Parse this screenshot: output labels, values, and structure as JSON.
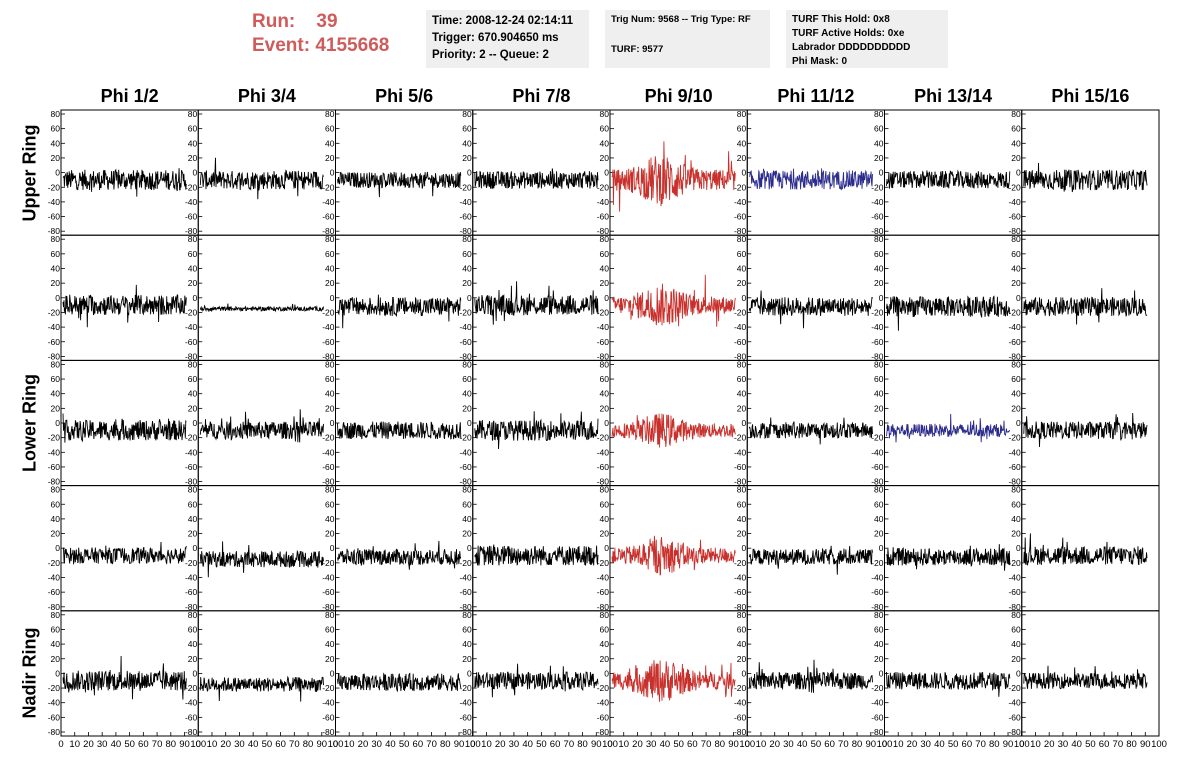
{
  "header": {
    "run_label": "Run:",
    "run_value": "39",
    "event_label": "Event:",
    "event_value": "4155668",
    "time": "Time: 2008-12-24 02:14:11",
    "trigger": "Trigger: 670.904650 ms",
    "priority": "Priority: 2 -- Queue: 2",
    "trig_num": "Trig Num: 9568 -- Trig Type: RF",
    "turf": "TURF: 9577",
    "turf_this_hold": "TURF This Hold: 0x8",
    "turf_active_holds": "TURF Active Holds: 0xe",
    "labrador": "Labrador DDDDDDDDDD",
    "phi_mask": "Phi Mask: 0"
  },
  "colors": {
    "run_text": "#cf5b5b",
    "trace_default": "#000000",
    "trace_red": "#c8302c",
    "trace_blue": "#2c2c8c",
    "info_bg": "#efefef"
  },
  "chart_data": {
    "type": "line",
    "columns": [
      "Phi 1/2",
      "Phi 3/4",
      "Phi 5/6",
      "Phi 7/8",
      "Phi 9/10",
      "Phi 11/12",
      "Phi 13/14",
      "Phi 15/16"
    ],
    "rows": [
      "Upper Ring",
      "",
      "Lower Ring",
      "",
      "Nadir Ring"
    ],
    "ylim": [
      -80,
      80
    ],
    "yticks": [
      "80",
      "60",
      "40",
      "20",
      "0",
      "-20",
      "-40",
      "-60",
      "-80"
    ],
    "xlim": [
      0,
      100
    ],
    "xticks": [
      "0",
      "10",
      "20",
      "30",
      "40",
      "50",
      "60",
      "70",
      "80",
      "90",
      "100"
    ],
    "grid": false,
    "trace_colors": [
      [
        "black",
        "black",
        "black",
        "black",
        "red",
        "blue",
        "black",
        "black"
      ],
      [
        "black",
        "black",
        "black",
        "black",
        "red",
        "black",
        "black",
        "black"
      ],
      [
        "black",
        "black",
        "black",
        "black",
        "red",
        "black",
        "blue",
        "black"
      ],
      [
        "black",
        "black",
        "black",
        "black",
        "red",
        "black",
        "black",
        "black"
      ],
      [
        "black",
        "black",
        "black",
        "black",
        "red",
        "black",
        "black",
        "black"
      ]
    ],
    "trace_amplitude": [
      [
        14,
        13,
        11,
        12,
        24,
        13,
        12,
        14
      ],
      [
        14,
        3,
        13,
        14,
        20,
        13,
        14,
        13
      ],
      [
        14,
        12,
        12,
        14,
        16,
        11,
        9,
        12
      ],
      [
        11,
        11,
        11,
        14,
        18,
        11,
        12,
        13
      ],
      [
        14,
        10,
        12,
        12,
        20,
        12,
        12,
        11
      ]
    ],
    "trace_offset": [
      [
        -10,
        -10,
        -10,
        -10,
        -10,
        -10,
        -10,
        -10
      ],
      [
        -10,
        -15,
        -12,
        -10,
        -10,
        -12,
        -12,
        -12
      ],
      [
        -10,
        -10,
        -10,
        -10,
        -10,
        -10,
        -10,
        -10
      ],
      [
        -10,
        -15,
        -12,
        -10,
        -10,
        -12,
        -12,
        -10
      ],
      [
        -10,
        -15,
        -12,
        -10,
        -10,
        -10,
        -10,
        -10
      ]
    ]
  }
}
